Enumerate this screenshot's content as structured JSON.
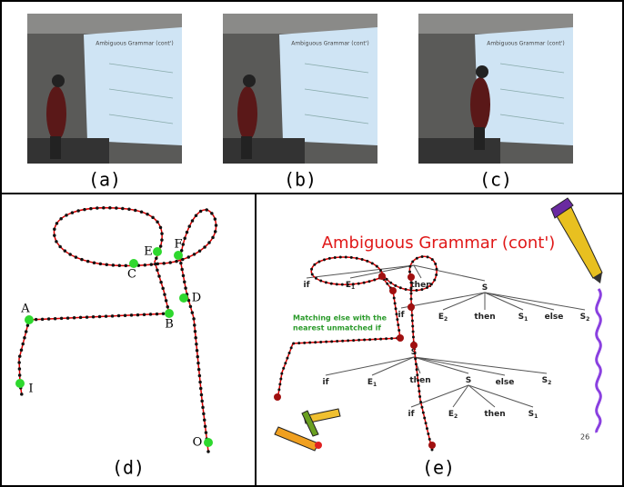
{
  "photos": [
    {
      "caption": "(a)"
    },
    {
      "caption": "(b)"
    },
    {
      "caption": "(c)"
    }
  ],
  "slide_title": "Ambiguous Grammar (cont')",
  "trajectory": {
    "caption": "(d)",
    "points": [
      "A",
      "B",
      "C",
      "D",
      "E",
      "F",
      "I",
      "O"
    ]
  },
  "slide": {
    "caption": "(e)",
    "title": "Ambiguous Grammar (cont')",
    "note": [
      "Matching else with the",
      "nearest unmatched if"
    ],
    "tree_labels": [
      {
        "text": "if"
      },
      {
        "text": "E",
        "sub": "1"
      },
      {
        "text": "then"
      },
      {
        "text": "S"
      },
      {
        "text": "if"
      },
      {
        "text": "E",
        "sub": "2"
      },
      {
        "text": "then"
      },
      {
        "text": "S",
        "sub": "1"
      },
      {
        "text": "else"
      },
      {
        "text": "S",
        "sub": "2"
      },
      {
        "text": "S"
      },
      {
        "text": "if"
      },
      {
        "text": "E",
        "sub": "1"
      },
      {
        "text": "then"
      },
      {
        "text": "S"
      },
      {
        "text": "else"
      },
      {
        "text": "S",
        "sub": "2"
      },
      {
        "text": "if"
      },
      {
        "text": "E",
        "sub": "2"
      },
      {
        "text": "then"
      },
      {
        "text": "S",
        "sub": "1"
      }
    ],
    "page_number": "26"
  }
}
